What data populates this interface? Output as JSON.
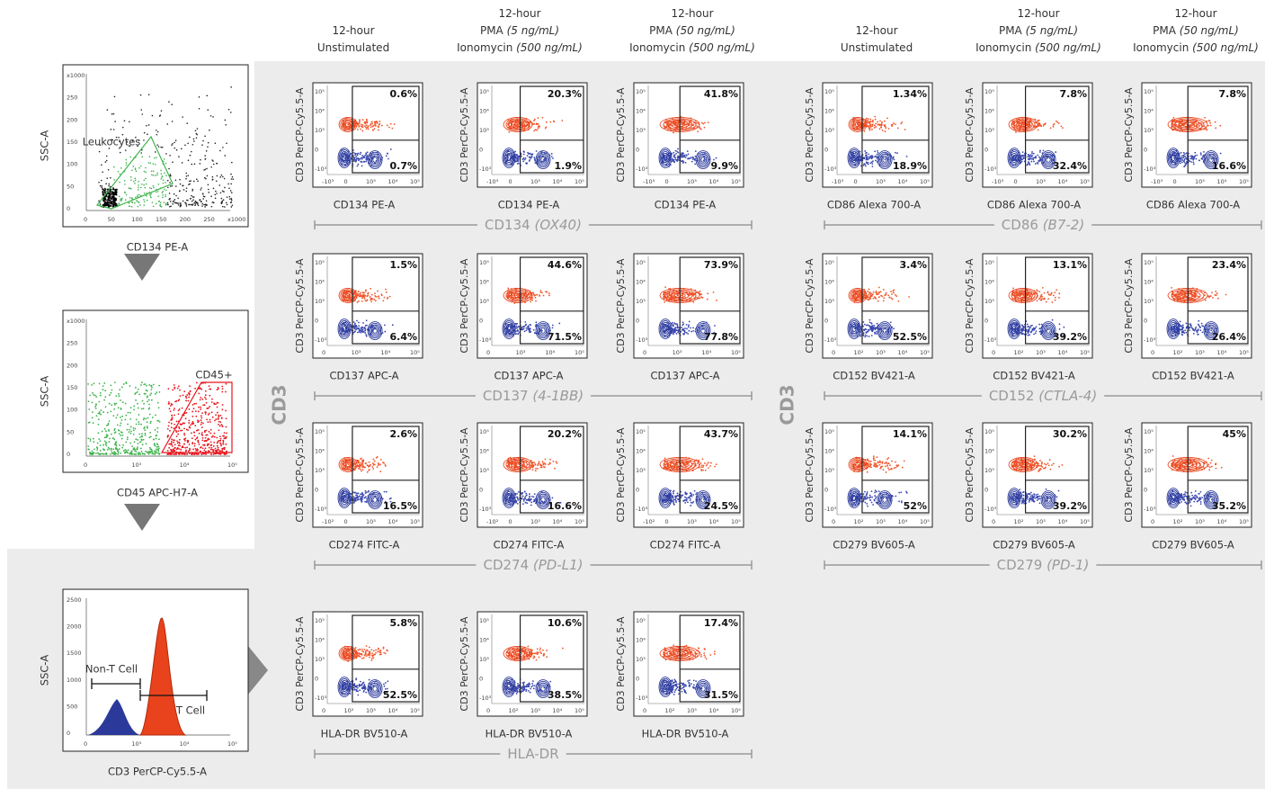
{
  "headers": [
    {
      "line1": "12-hour",
      "line2": "Unstimulated"
    },
    {
      "line1": "12-hour",
      "line2": "PMA",
      "line2_italic": "(5 ng/mL)",
      "line3": "Ionomycin",
      "line3_italic": "(500 ng/mL)"
    },
    {
      "line1": "12-hour",
      "line2": "PMA",
      "line2_italic": "(50 ng/mL)",
      "line3": "Ionomycin",
      "line3_italic": "(500 ng/mL)"
    },
    {
      "line1": "12-hour",
      "line2": "Unstimulated"
    },
    {
      "line1": "12-hour",
      "line2": "PMA",
      "line2_italic": "(5 ng/mL)",
      "line3": "Ionomycin",
      "line3_italic": "(500 ng/mL)"
    },
    {
      "line1": "12-hour",
      "line2": "PMA",
      "line2_italic": "(50 ng/mL)",
      "line3": "Ionomycin",
      "line3_italic": "(500 ng/mL)"
    }
  ],
  "side_labels": [
    "CD3",
    "CD3"
  ],
  "plot_y_label": "CD3 PerCP-Cy5.5-A",
  "plot_y_ticks": [
    "10⁵",
    "10⁴",
    "10³",
    "0",
    "-10³"
  ],
  "panels": [
    {
      "marker": "CD134",
      "alias": "(OX40)",
      "x_label": "CD134 PE-A",
      "x_ticks": [
        "-10³",
        "0",
        "10³",
        "10⁴",
        "10⁵"
      ],
      "plots": [
        {
          "upper": "0.6%",
          "lower": "0.7%"
        },
        {
          "upper": "20.3%",
          "lower": "1.9%"
        },
        {
          "upper": "41.8%",
          "lower": "9.9%"
        }
      ]
    },
    {
      "marker": "CD137",
      "alias": "(4-1BB)",
      "x_label": "CD137 APC-A",
      "x_ticks": [
        "0",
        "10³",
        "10⁴",
        "10⁵"
      ],
      "plots": [
        {
          "upper": "1.5%",
          "lower": "6.4%"
        },
        {
          "upper": "44.6%",
          "lower": "71.5%"
        },
        {
          "upper": "73.9%",
          "lower": "77.8%"
        }
      ]
    },
    {
      "marker": "CD274",
      "alias": "(PD-L1)",
      "x_label": "CD274 FITC-A",
      "x_ticks": [
        "-10²",
        "0",
        "10³",
        "10⁴",
        "10⁵"
      ],
      "plots": [
        {
          "upper": "2.6%",
          "lower": "16.5%"
        },
        {
          "upper": "20.2%",
          "lower": "16.6%"
        },
        {
          "upper": "43.7%",
          "lower": "24.5%"
        }
      ]
    },
    {
      "marker": "HLA-DR",
      "x_label": "HLA-DR BV510-A",
      "x_ticks": [
        "0",
        "10²",
        "10³",
        "10⁴",
        "10⁵"
      ],
      "plots": [
        {
          "upper": "5.8%",
          "lower": "52.5%"
        },
        {
          "upper": "10.6%",
          "lower": "38.5%"
        },
        {
          "upper": "17.4%",
          "lower": "31.5%"
        }
      ]
    },
    {
      "marker": "CD86",
      "alias": "(B7-2)",
      "x_label": "CD86 Alexa 700-A",
      "x_ticks": [
        "-10³",
        "0",
        "10³",
        "10⁴",
        "10⁵"
      ],
      "plots": [
        {
          "upper": "1.34%",
          "lower": "18.9%"
        },
        {
          "upper": "7.8%",
          "lower": "32.4%"
        },
        {
          "upper": "7.8%",
          "lower": "16.6%"
        }
      ]
    },
    {
      "marker": "CD152",
      "alias": "(CTLA-4)",
      "x_label": "CD152 BV421-A",
      "x_ticks": [
        "0",
        "10²",
        "10³",
        "10⁴",
        "10⁵"
      ],
      "plots": [
        {
          "upper": "3.4%",
          "lower": "52.5%"
        },
        {
          "upper": "13.1%",
          "lower": "39.2%"
        },
        {
          "upper": "23.4%",
          "lower": "26.4%"
        }
      ]
    },
    {
      "marker": "CD279",
      "alias": "(PD-1)",
      "x_label": "CD279 BV605-A",
      "x_ticks": [
        "0",
        "10²",
        "10³",
        "10⁴",
        "10⁵"
      ],
      "plots": [
        {
          "upper": "14.1%",
          "lower": "52%"
        },
        {
          "upper": "30.2%",
          "lower": "39.2%"
        },
        {
          "upper": "45%",
          "lower": "35.2%"
        }
      ]
    }
  ],
  "gating": [
    {
      "y_label": "SSC-A",
      "x_label": "CD134 PE-A",
      "gates": [
        "Leukocytes"
      ],
      "y_ticks": [
        "x1000",
        "250",
        "200",
        "150",
        "100",
        "50",
        "0"
      ],
      "x_ticks": [
        "0",
        "50",
        "100",
        "150",
        "200",
        "250",
        "x1000"
      ]
    },
    {
      "y_label": "SSC-A",
      "x_label": "CD45 APC-H7-A",
      "gates": [
        "CD45+"
      ],
      "y_ticks": [
        "x1000",
        "250",
        "200",
        "150",
        "100",
        "50",
        "0"
      ],
      "x_ticks": [
        "0",
        "10³",
        "10⁴",
        "10⁵"
      ]
    },
    {
      "y_label": "SSC-A",
      "x_label": "CD3 PerCP-Cy5.5-A",
      "gates": [
        "Non-T Cell",
        "T Cell"
      ],
      "y_ticks": [
        "2500",
        "2000",
        "1500",
        "1000",
        "500",
        "0"
      ],
      "x_ticks": [
        "0",
        "10³",
        "10⁴",
        "10⁵"
      ]
    }
  ]
}
